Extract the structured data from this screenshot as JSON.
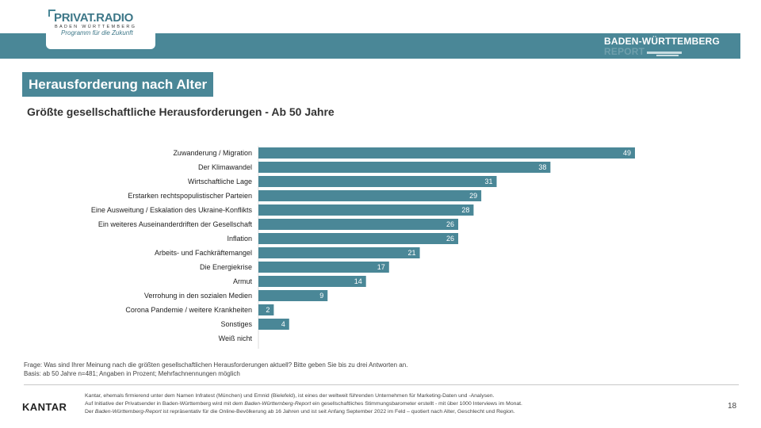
{
  "header": {
    "logo_main": "PRIVAT.RADIO",
    "logo_sub": "BADEN WÜRTTEMBERG",
    "logo_tagline": "Programm für die Zukunft",
    "report_title": "BADEN-WÜRTTEMBERG",
    "report_sub": "REPORT"
  },
  "slide": {
    "title": "Herausforderung nach Alter",
    "subtitle": "Größte gesellschaftliche Herausforderungen - Ab 50 Jahre"
  },
  "colors": {
    "accent": "#4a8797",
    "bar": "#4a8797",
    "label": "#ffffff"
  },
  "chart_data": {
    "type": "bar",
    "orientation": "horizontal",
    "title": "Größte gesellschaftliche Herausforderungen - Ab 50 Jahre",
    "categories": [
      "Zuwanderung / Migration",
      "Der Klimawandel",
      "Wirtschaftliche Lage",
      "Erstarken rechtspopulistischer Parteien",
      "Eine Ausweitung / Eskalation des Ukraine-Konflikts",
      "Ein weiteres Auseinanderdriften der Gesellschaft",
      "Inflation",
      "Arbeits- und Fachkräftemangel",
      "Die Energiekrise",
      "Armut",
      "Verrohung in den sozialen Medien",
      "Corona Pandemie / weitere Krankheiten",
      "Sonstiges",
      "Weiß nicht"
    ],
    "values": [
      49,
      38,
      31,
      29,
      28,
      26,
      26,
      21,
      17,
      14,
      9,
      2,
      4,
      0
    ],
    "value_labels": [
      "49",
      "38",
      "31",
      "29",
      "28",
      "26",
      "26",
      "21",
      "17",
      "14",
      "9",
      "2",
      "4",
      ""
    ],
    "xlim": [
      0,
      49
    ],
    "grid": false,
    "legend": "none"
  },
  "footnotes": {
    "question": "Frage: Was sind Ihrer Meinung nach die größten gesellschaftlichen Herausforderungen aktuell? Bitte geben Sie bis zu drei Antworten an.",
    "basis": "Basis: ab 50 Jahre n=481; Angaben in Prozent; Mehrfachnennungen möglich"
  },
  "footer": {
    "brand": "KANTAR",
    "about_1": "Kantar, ehemals firmierend unter dem Namen Infratest (München) und Emnid (Bielefeld), ist eines der weltweit führenden Unternehmen für Marketing-Daten und -Analysen.",
    "about_2_a": "Auf Initiative der Privatsender in Baden-Württemberg wird mit dem ",
    "about_2_b": "Baden-Württemberg-Report",
    "about_2_c": " ein gesellschaftliches Stimmungsbarometer erstellt - mit über 1000 Interviews im Monat.",
    "about_3_a": "Der ",
    "about_3_b": "Baden-Württemberg-Report",
    "about_3_c": " ist repräsentativ für die Online-Bevölkerung ab 16 Jahren und ist seit Anfang September 2022 im Feld – quotiert nach Alter, Geschlecht und Region.",
    "page": "18"
  }
}
